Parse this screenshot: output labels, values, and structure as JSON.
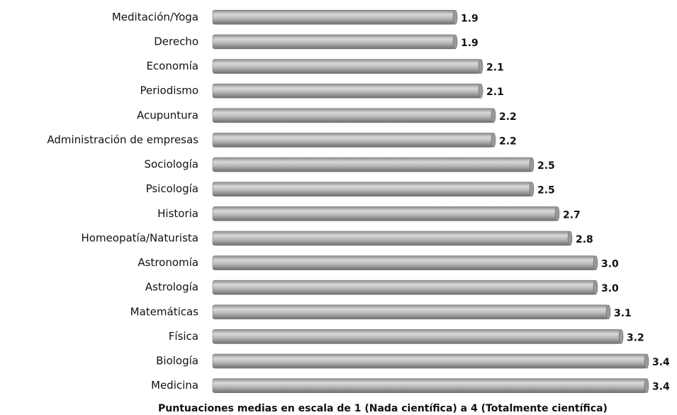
{
  "chart_data": {
    "type": "bar",
    "orientation": "horizontal",
    "categories": [
      "Meditación/Yoga",
      "Derecho",
      "Economía",
      "Periodismo",
      "Acupuntura",
      "Administración de empresas",
      "Sociología",
      "Psicología",
      "Historia",
      "Homeopatía/Naturista",
      "Astronomía",
      "Astrología",
      "Matemáticas",
      "Física",
      "Biología",
      "Medicina"
    ],
    "values": [
      1.9,
      1.9,
      2.1,
      2.1,
      2.2,
      2.2,
      2.5,
      2.5,
      2.7,
      2.8,
      3.0,
      3.0,
      3.1,
      3.2,
      3.4,
      3.4
    ],
    "value_labels": [
      "1.9",
      "1.9",
      "2.1",
      "2.1",
      "2.2",
      "2.2",
      "2.5",
      "2.5",
      "2.7",
      "2.8",
      "3.0",
      "3.0",
      "3.1",
      "3.2",
      "3.4",
      "3.4"
    ],
    "color": "#a6a6a6",
    "xlim": [
      0,
      3.5
    ],
    "xlabel": "Puntuaciones medias en escala de 1 (Nada científica) a 4 (Totalmente científica)"
  }
}
